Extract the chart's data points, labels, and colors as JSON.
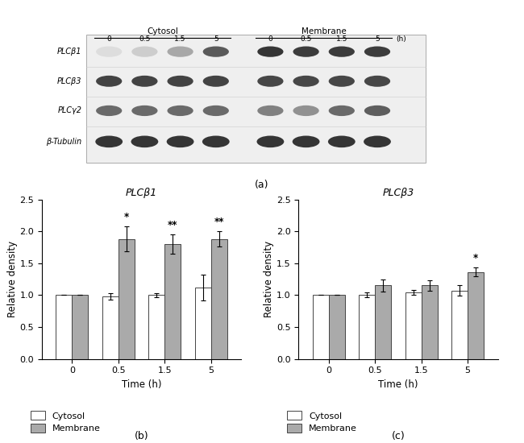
{
  "panel_b": {
    "title": "PLCβ1",
    "time_points": [
      0,
      0.5,
      1.5,
      5
    ],
    "cytosol_values": [
      1.0,
      0.98,
      1.0,
      1.12
    ],
    "cytosol_errors": [
      0.0,
      0.05,
      0.03,
      0.2
    ],
    "membrane_values": [
      1.0,
      1.88,
      1.8,
      1.88
    ],
    "membrane_errors": [
      0.0,
      0.2,
      0.15,
      0.12
    ],
    "annotations": [
      "",
      "*",
      "**",
      "**"
    ],
    "ann_on_membrane": [
      false,
      true,
      true,
      true
    ],
    "xlabel": "Time (h)",
    "ylabel": "Relative density",
    "ylim": [
      0,
      2.5
    ],
    "yticks": [
      0,
      0.5,
      1.0,
      1.5,
      2.0,
      2.5
    ],
    "xtick_labels": [
      "0",
      "0.5",
      "1.5",
      "5"
    ]
  },
  "panel_c": {
    "title": "PLCβ3",
    "time_points": [
      0,
      0.5,
      1.5,
      5
    ],
    "cytosol_values": [
      1.0,
      1.0,
      1.04,
      1.07
    ],
    "cytosol_errors": [
      0.0,
      0.04,
      0.04,
      0.08
    ],
    "membrane_values": [
      1.0,
      1.15,
      1.15,
      1.36
    ],
    "membrane_errors": [
      0.0,
      0.1,
      0.08,
      0.07
    ],
    "annotations": [
      "",
      "",
      "",
      "*"
    ],
    "ann_on_membrane": [
      false,
      false,
      false,
      true
    ],
    "xlabel": "Time (h)",
    "ylabel": "Relative density",
    "ylim": [
      0,
      2.5
    ],
    "yticks": [
      0,
      0.5,
      1.0,
      1.5,
      2.0,
      2.5
    ],
    "xtick_labels": [
      "0",
      "0.5",
      "1.5",
      "5"
    ]
  },
  "bar_width": 0.35,
  "cytosol_color": "#ffffff",
  "membrane_color": "#aaaaaa",
  "edge_color": "#444444",
  "label_cytosol": "Cytosol",
  "label_membrane": "Membrane",
  "label_a": "(a)",
  "label_b": "(b)",
  "label_c": "(c)",
  "western_blot_rows": [
    "PLCβ1",
    "PLCβ3",
    "PLCγ2",
    "β-Tubulin"
  ],
  "time_labels": [
    "0",
    "0.5",
    "1.5",
    "5"
  ],
  "time_unit": "(h)",
  "blot_bg_color": "#f0f0f0",
  "blot_stripe_color": "#e0e0e0",
  "blot_border_color": "#888888"
}
